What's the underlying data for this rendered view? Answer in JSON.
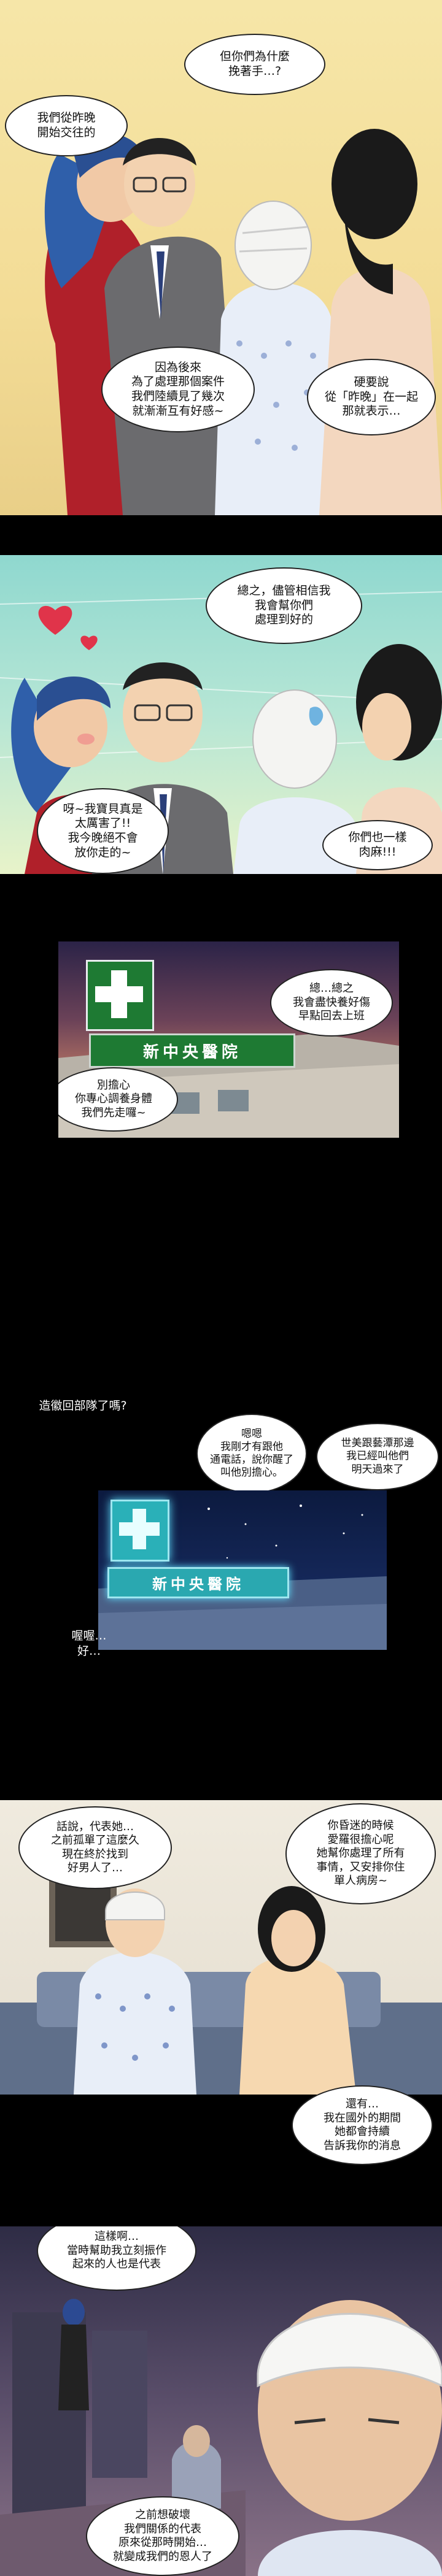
{
  "panels": [
    {
      "id": "p1",
      "bubbles": [
        "但你們為什麼\n挽著手…?",
        "我們從昨晚\n開始交往的",
        "因為後來\n為了處理那個案件\n我們陸續見了幾次\n就漸漸互有好感~",
        "硬要說\n從「昨晚」在一起\n那就表示…"
      ]
    },
    {
      "id": "p2",
      "bubbles": [
        "總之，儘管相信我\n我會幫你們\n處理到好的",
        "呀~我寶貝真是\n太厲害了!!\n我今晚絕不會\n放你走的~",
        "你們也一樣\n肉麻!!!"
      ]
    },
    {
      "id": "p3",
      "sign": "新中央醫院",
      "bubbles": [
        "總…總之\n我會盡快養好傷\n早點回去上班",
        "別擔心\n你專心調養身體\n我們先走囉~"
      ]
    },
    {
      "id": "p4",
      "sign": "新中央醫院",
      "bubbles": [
        "造徽回部隊了嗎?",
        "嗯嗯\n我剛才有跟他\n通電話，說你醒了\n叫他別擔心。",
        "世美跟藝潭那邊\n我已經叫他們\n明天過來了",
        "喔喔…\n好…"
      ]
    },
    {
      "id": "p5",
      "bubbles": [
        "話說，代表她…\n之前孤單了這麼久\n現在終於找到\n好男人了…",
        "你昏迷的時候\n愛羅很擔心呢\n她幫你處理了所有\n事情，又安排你住\n單人病房~",
        "還有…\n我在國外的期間\n她都會持續\n告訴我你的消息"
      ]
    },
    {
      "id": "p6",
      "bubbles": [
        "這樣啊…\n當時幫助我立刻振作\n起來的人也是代表",
        "之前想破壞\n我們關係的代表\n原來從那時開始…\n就變成我們的恩人了"
      ]
    }
  ]
}
